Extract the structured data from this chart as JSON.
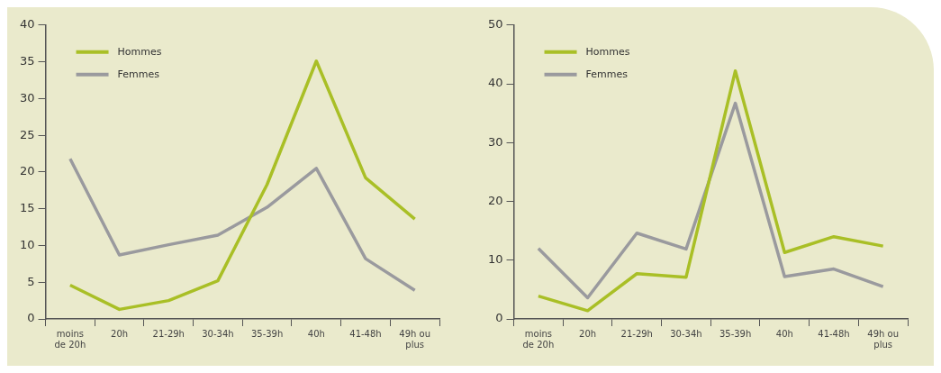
{
  "chart_data": [
    {
      "type": "line",
      "categories": [
        "moins de 20h",
        "20h",
        "21-29h",
        "30-34h",
        "35-39h",
        "40h",
        "41-48h",
        "49h ou plus"
      ],
      "series": [
        {
          "name": "Hommes",
          "color": "#a9bf26",
          "values": [
            4.6,
            1.3,
            2.5,
            5.2,
            18.3,
            35.1,
            19.2,
            13.6
          ]
        },
        {
          "name": "Femmes",
          "color": "#9a9a9e",
          "values": [
            21.8,
            8.7,
            10.1,
            11.4,
            15.2,
            20.5,
            8.2,
            3.9
          ]
        }
      ],
      "ylim": [
        0,
        40
      ],
      "yticks": [
        0,
        5,
        10,
        15,
        20,
        25,
        30,
        35,
        40
      ],
      "grid": false,
      "legend": "top left",
      "marker": "none",
      "line_style": "solid"
    },
    {
      "type": "line",
      "categories": [
        "moins de 20h",
        "20h",
        "21-29h",
        "30-34h",
        "35-39h",
        "40h",
        "41-48h",
        "49h ou plus"
      ],
      "series": [
        {
          "name": "Hommes",
          "color": "#a9bf26",
          "values": [
            3.9,
            1.4,
            7.7,
            7.1,
            42.2,
            11.3,
            14.0,
            12.4
          ]
        },
        {
          "name": "Femmes",
          "color": "#9a9a9e",
          "values": [
            12.0,
            3.6,
            14.6,
            11.9,
            36.7,
            7.2,
            8.5,
            5.5
          ]
        }
      ],
      "ylim": [
        0,
        50
      ],
      "yticks": [
        0,
        10,
        20,
        30,
        40,
        50
      ],
      "grid": false,
      "legend": "top left",
      "marker": "none",
      "line_style": "solid"
    }
  ]
}
